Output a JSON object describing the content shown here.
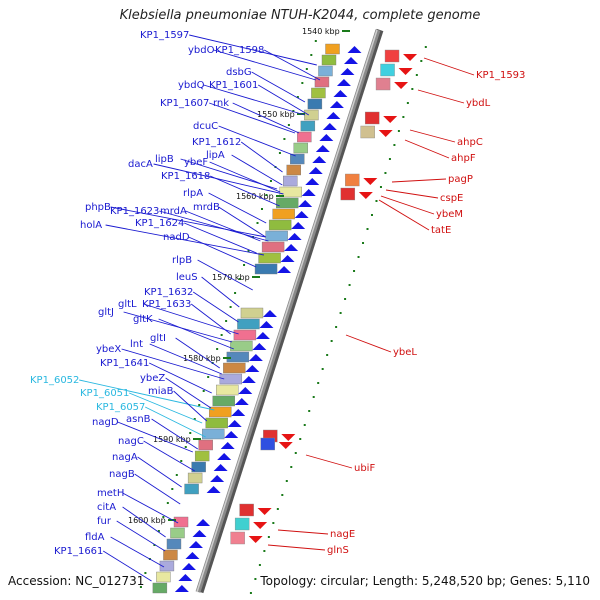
{
  "title": "Klebsiella pneumoniae NTUH-K2044, complete genome",
  "footer": {
    "accession": "Accession: NC_012731",
    "topology": "Topology: circular; Length: 5,248,520 bp; Genes: 5,110"
  },
  "colors": {
    "left_label": "#1a1ad0",
    "left_label_alt": "#2ab8e0",
    "right_label": "#d01010",
    "backbone": "#8a8a8a",
    "tick": "#1a7a1a",
    "arrow_left": "#1414e6",
    "arrow_right": "#e61414"
  },
  "scale_ticks": [
    "1540 kbp",
    "1550 kbp",
    "1560 kbp",
    "1570 kbp",
    "1580 kbp",
    "1590 kbp",
    "1600 kbp"
  ],
  "left_genes": [
    {
      "name": "KP1_1597",
      "color": "blue"
    },
    {
      "name": "ybdO",
      "color": "blue"
    },
    {
      "name": "KP1_1598",
      "color": "blue"
    },
    {
      "name": "dsbG",
      "color": "blue"
    },
    {
      "name": "ybdQ",
      "color": "blue"
    },
    {
      "name": "KP1_1601",
      "color": "blue"
    },
    {
      "name": "KP1_1607",
      "color": "blue"
    },
    {
      "name": "rnk",
      "color": "blue"
    },
    {
      "name": "dcuC",
      "color": "blue"
    },
    {
      "name": "KP1_1612",
      "color": "blue"
    },
    {
      "name": "lipA",
      "color": "blue"
    },
    {
      "name": "dacA",
      "color": "blue"
    },
    {
      "name": "lipB",
      "color": "blue"
    },
    {
      "name": "ybeF",
      "color": "blue"
    },
    {
      "name": "KP1_1618",
      "color": "blue"
    },
    {
      "name": "rlpA",
      "color": "blue"
    },
    {
      "name": "phpB",
      "color": "blue"
    },
    {
      "name": "KP1_1623",
      "color": "blue"
    },
    {
      "name": "mrdA",
      "color": "blue"
    },
    {
      "name": "mrdB",
      "color": "blue"
    },
    {
      "name": "holA",
      "color": "blue"
    },
    {
      "name": "KP1_1624",
      "color": "blue"
    },
    {
      "name": "nadD",
      "color": "blue"
    },
    {
      "name": "rlpB",
      "color": "blue"
    },
    {
      "name": "leuS",
      "color": "blue"
    },
    {
      "name": "KP1_1632",
      "color": "blue"
    },
    {
      "name": "gltL",
      "color": "blue"
    },
    {
      "name": "KP1_1633",
      "color": "blue"
    },
    {
      "name": "gltJ",
      "color": "blue"
    },
    {
      "name": "gltK",
      "color": "blue"
    },
    {
      "name": "gltI",
      "color": "blue"
    },
    {
      "name": "lnt",
      "color": "blue"
    },
    {
      "name": "ybeX",
      "color": "blue"
    },
    {
      "name": "KP1_1641",
      "color": "blue"
    },
    {
      "name": "ybeZ",
      "color": "blue"
    },
    {
      "name": "KP1_6052",
      "color": "cyan"
    },
    {
      "name": "KP1_6051",
      "color": "cyan"
    },
    {
      "name": "miaB",
      "color": "blue"
    },
    {
      "name": "KP1_6057",
      "color": "cyan"
    },
    {
      "name": "nagD",
      "color": "blue"
    },
    {
      "name": "asnB",
      "color": "blue"
    },
    {
      "name": "nagC",
      "color": "blue"
    },
    {
      "name": "nagA",
      "color": "blue"
    },
    {
      "name": "nagB",
      "color": "blue"
    },
    {
      "name": "metH",
      "color": "blue"
    },
    {
      "name": "citA",
      "color": "blue"
    },
    {
      "name": "fur",
      "color": "blue"
    },
    {
      "name": "fldA",
      "color": "blue"
    },
    {
      "name": "KP1_1661",
      "color": "blue"
    }
  ],
  "right_genes": [
    {
      "name": "KP1_1593"
    },
    {
      "name": "ybdL"
    },
    {
      "name": "ahpC"
    },
    {
      "name": "ahpF"
    },
    {
      "name": "pagP"
    },
    {
      "name": "cspE"
    },
    {
      "name": "ybeM"
    },
    {
      "name": "tatE"
    },
    {
      "name": "ybeL"
    },
    {
      "name": "ubiF"
    },
    {
      "name": "nagE"
    },
    {
      "name": "glnS"
    }
  ]
}
